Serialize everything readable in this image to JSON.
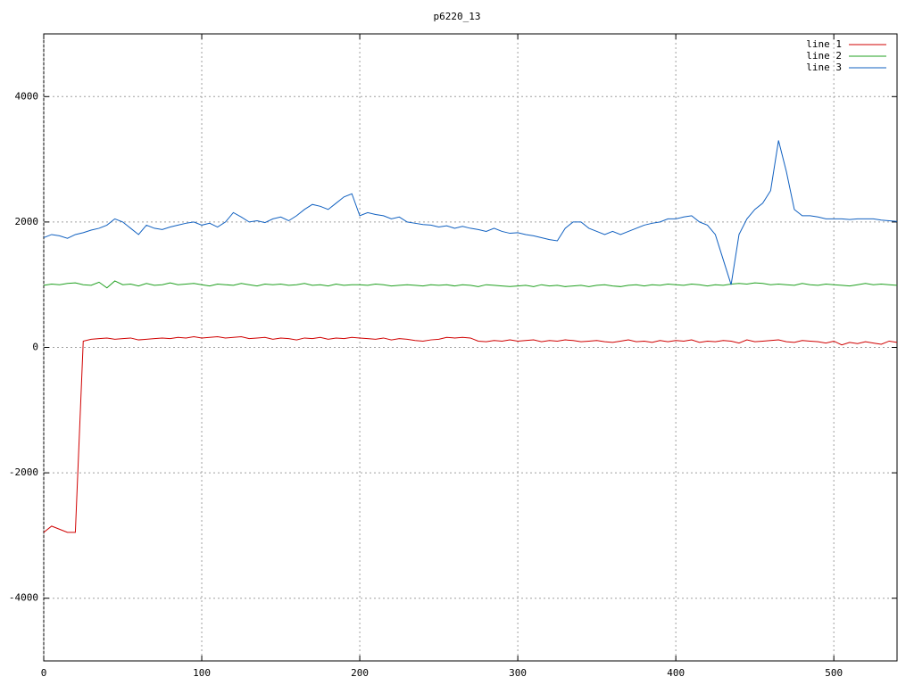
{
  "chart_data": {
    "type": "line",
    "title": "p6220_13",
    "x": [
      0,
      5,
      10,
      15,
      20,
      25,
      30,
      35,
      40,
      45,
      50,
      55,
      60,
      65,
      70,
      75,
      80,
      85,
      90,
      95,
      100,
      105,
      110,
      115,
      120,
      125,
      130,
      135,
      140,
      145,
      150,
      155,
      160,
      165,
      170,
      175,
      180,
      185,
      190,
      195,
      200,
      205,
      210,
      215,
      220,
      225,
      230,
      235,
      240,
      245,
      250,
      255,
      260,
      265,
      270,
      275,
      280,
      285,
      290,
      295,
      300,
      305,
      310,
      315,
      320,
      325,
      330,
      335,
      340,
      345,
      350,
      355,
      360,
      365,
      370,
      375,
      380,
      385,
      390,
      395,
      400,
      405,
      410,
      415,
      420,
      425,
      430,
      435,
      440,
      445,
      450,
      455,
      460,
      465,
      470,
      475,
      480,
      485,
      490,
      495,
      500,
      505,
      510,
      515,
      520,
      525,
      530,
      535,
      540
    ],
    "series": [
      {
        "name": "line 1",
        "color": "#d00000",
        "values": [
          -2950,
          -2850,
          -2900,
          -2950,
          -2950,
          100,
          130,
          140,
          150,
          130,
          140,
          150,
          120,
          130,
          140,
          150,
          140,
          160,
          150,
          170,
          150,
          160,
          170,
          150,
          160,
          170,
          140,
          150,
          160,
          130,
          150,
          140,
          120,
          150,
          140,
          160,
          130,
          150,
          140,
          160,
          150,
          140,
          130,
          150,
          120,
          140,
          130,
          110,
          100,
          120,
          130,
          160,
          150,
          160,
          150,
          100,
          90,
          110,
          100,
          120,
          100,
          110,
          120,
          90,
          110,
          100,
          120,
          110,
          90,
          100,
          110,
          90,
          80,
          100,
          120,
          90,
          100,
          80,
          110,
          90,
          110,
          100,
          120,
          80,
          100,
          90,
          110,
          100,
          70,
          120,
          90,
          100,
          110,
          120,
          90,
          80,
          110,
          100,
          90,
          70,
          100,
          40,
          80,
          60,
          90,
          70,
          50,
          100,
          80
        ]
      },
      {
        "name": "line 2",
        "color": "#20a020",
        "values": [
          990,
          1010,
          1000,
          1020,
          1030,
          1000,
          990,
          1040,
          950,
          1060,
          1000,
          1010,
          980,
          1020,
          990,
          1000,
          1030,
          1000,
          1010,
          1020,
          1000,
          980,
          1010,
          1000,
          990,
          1020,
          1000,
          980,
          1010,
          1000,
          1010,
          990,
          1000,
          1020,
          990,
          1000,
          980,
          1010,
          990,
          1000,
          1000,
          990,
          1010,
          1000,
          980,
          990,
          1000,
          990,
          980,
          1000,
          990,
          1000,
          980,
          1000,
          990,
          970,
          1000,
          990,
          980,
          970,
          980,
          990,
          970,
          1000,
          980,
          990,
          970,
          980,
          990,
          970,
          990,
          1000,
          980,
          970,
          990,
          1000,
          980,
          1000,
          990,
          1010,
          1000,
          990,
          1010,
          1000,
          980,
          1000,
          990,
          1010,
          1020,
          1010,
          1030,
          1020,
          1000,
          1010,
          1000,
          990,
          1020,
          1000,
          990,
          1010,
          1000,
          990,
          980,
          1000,
          1020,
          1000,
          1010,
          1000,
          990
        ]
      },
      {
        "name": "line 3",
        "color": "#1060c0",
        "values": [
          1750,
          1800,
          1780,
          1740,
          1800,
          1830,
          1870,
          1900,
          1950,
          2050,
          2000,
          1900,
          1800,
          1950,
          1900,
          1880,
          1920,
          1950,
          1980,
          2000,
          1950,
          1980,
          1920,
          2000,
          2150,
          2080,
          2000,
          2020,
          1990,
          2050,
          2080,
          2020,
          2100,
          2200,
          2280,
          2250,
          2200,
          2300,
          2400,
          2450,
          2100,
          2150,
          2120,
          2100,
          2050,
          2080,
          2000,
          1980,
          1960,
          1950,
          1920,
          1940,
          1900,
          1930,
          1900,
          1880,
          1850,
          1900,
          1850,
          1820,
          1830,
          1800,
          1780,
          1750,
          1720,
          1700,
          1900,
          2000,
          2000,
          1900,
          1850,
          1800,
          1850,
          1800,
          1850,
          1900,
          1950,
          1980,
          2000,
          2050,
          2050,
          2080,
          2100,
          2000,
          1950,
          1800,
          1400,
          1000,
          1800,
          2050,
          2200,
          2300,
          2500,
          3300,
          2800,
          2200,
          2100,
          2100,
          2080,
          2050,
          2050,
          2050,
          2040,
          2050,
          2050,
          2050,
          2030,
          2020,
          2010
        ]
      }
    ],
    "xlim": [
      0,
      540
    ],
    "ylim": [
      -5000,
      5000
    ],
    "xticks": [
      0,
      100,
      200,
      300,
      400,
      500
    ],
    "yticks": [
      -4000,
      -2000,
      0,
      2000,
      4000
    ],
    "grid": true,
    "legend": "top-right"
  }
}
